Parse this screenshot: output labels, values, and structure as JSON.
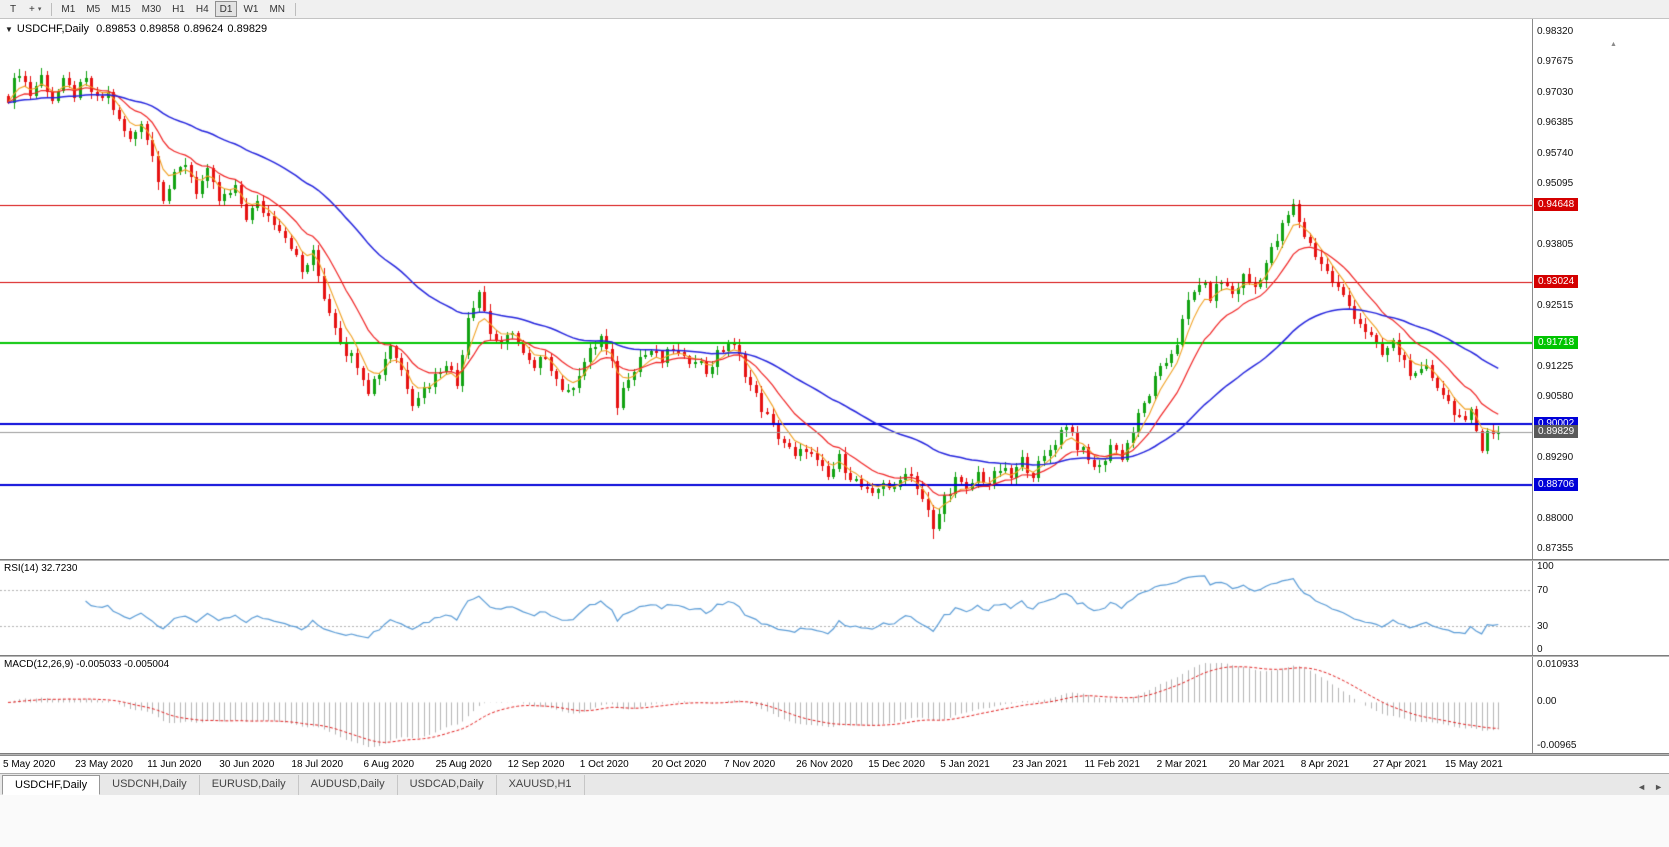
{
  "colors": {
    "bull": "#12a312",
    "bear": "#e61212",
    "ma_fast": "#f0a020",
    "ma_mid": "#f02424",
    "ma_slow": "#2424dd",
    "rsi_line": "#5b9cd6",
    "macd_hist": "#b4b4b4",
    "macd_signal": "#e02020",
    "level_dotted": "#b0b0b0",
    "current_line": "#9a9a9a"
  },
  "toolbar": {
    "icons": [
      {
        "name": "templates-icon",
        "glyph": "T"
      },
      {
        "name": "crosshair-icon",
        "glyph": "+"
      },
      {
        "name": "dropdown-caret-icon",
        "glyph": "▾"
      }
    ],
    "timeframes": [
      "M1",
      "M5",
      "M15",
      "M30",
      "H1",
      "H4",
      "D1",
      "W1",
      "MN"
    ],
    "active_timeframe": "D1"
  },
  "chart": {
    "collapse_glyph": "▼",
    "scroll_up_glyph": "▲",
    "symbol_label": "USDCHF,Daily",
    "ohlc": {
      "open": "0.89853",
      "high": "0.89858",
      "low": "0.89624",
      "close": "0.89829"
    },
    "price_axis": [
      "0.98320",
      "0.97675",
      "0.97030",
      "0.96385",
      "0.95740",
      "0.95095",
      "0.94450",
      "0.93805",
      "0.93160",
      "0.92515",
      "0.91870",
      "0.91225",
      "0.90580",
      "0.89935",
      "0.89290",
      "0.88645",
      "0.88000",
      "0.87355"
    ],
    "hlines": [
      {
        "label": "0.94648",
        "value": 0.94648,
        "color": "#d40000",
        "width": 1
      },
      {
        "label": "0.93024",
        "value": 0.93024,
        "color": "#d40000",
        "width": 1
      },
      {
        "label": "0.91718",
        "value": 0.91718,
        "color": "#00c400",
        "width": 2
      },
      {
        "label": "0.90002",
        "value": 0.90002,
        "color": "#0000d8",
        "width": 2
      },
      {
        "label": "0.88706",
        "value": 0.88706,
        "color": "#0000d8",
        "width": 2
      }
    ],
    "current_price": {
      "label": "0.89829",
      "value": 0.89829,
      "color": "#5a5a5a"
    }
  },
  "rsi": {
    "label": "RSI(14) 32.7230",
    "period": 14,
    "current": 32.723,
    "axis": [
      {
        "label": "100",
        "value": 100
      },
      {
        "label": "70",
        "value": 70
      },
      {
        "label": "30",
        "value": 30
      },
      {
        "label": "0",
        "value": 0
      }
    ],
    "upper_level": 70,
    "lower_level": 30
  },
  "macd": {
    "label": "MACD(12,26,9) -0.005033 -0.005004",
    "fast": 12,
    "slow": 26,
    "signal": 9,
    "current_macd": -0.005033,
    "current_signal": -0.005004,
    "axis_max": "0.010933",
    "axis_zero": "0.00",
    "axis_min": "-0.00965"
  },
  "tabs": {
    "items": [
      {
        "label": "USDCHF,Daily",
        "active": true
      },
      {
        "label": "USDCNH,Daily",
        "active": false
      },
      {
        "label": "EURUSD,Daily",
        "active": false
      },
      {
        "label": "AUDUSD,Daily",
        "active": false
      },
      {
        "label": "USDCAD,Daily",
        "active": false
      },
      {
        "label": "XAUUSD,H1",
        "active": false
      }
    ],
    "scroll_left_glyph": "◄",
    "scroll_right_glyph": "►"
  },
  "chart_data": {
    "type": "candlestick",
    "symbol": "USDCHF",
    "timeframe": "Daily",
    "bars": 270,
    "price_axis_range": [
      0.87355,
      0.9832
    ],
    "x_labels": [
      "5 May 2020",
      "23 May 2020",
      "11 Jun 2020",
      "30 Jun 2020",
      "18 Jul 2020",
      "6 Aug 2020",
      "25 Aug 2020",
      "12 Sep 2020",
      "1 Oct 2020",
      "20 Oct 2020",
      "7 Nov 2020",
      "26 Nov 2020",
      "15 Dec 2020",
      "5 Jan 2021",
      "23 Jan 2021",
      "11 Feb 2021",
      "2 Mar 2021",
      "20 Mar 2021",
      "8 Apr 2021",
      "27 Apr 2021",
      "15 May 2021"
    ],
    "close_anchors": [
      [
        0,
        0.9695
      ],
      [
        2,
        0.975
      ],
      [
        4,
        0.97
      ],
      [
        6,
        0.9737
      ],
      [
        8,
        0.969
      ],
      [
        10,
        0.9722
      ],
      [
        12,
        0.97
      ],
      [
        14,
        0.9726
      ],
      [
        16,
        0.9685
      ],
      [
        18,
        0.9702
      ],
      [
        20,
        0.964
      ],
      [
        22,
        0.96
      ],
      [
        24,
        0.9646
      ],
      [
        26,
        0.957
      ],
      [
        28,
        0.9482
      ],
      [
        30,
        0.9522
      ],
      [
        32,
        0.9556
      ],
      [
        34,
        0.9496
      ],
      [
        36,
        0.9532
      ],
      [
        38,
        0.9474
      ],
      [
        41,
        0.9496
      ],
      [
        43,
        0.944
      ],
      [
        45,
        0.9466
      ],
      [
        47,
        0.9442
      ],
      [
        49,
        0.942
      ],
      [
        51,
        0.9382
      ],
      [
        53,
        0.9322
      ],
      [
        55,
        0.936
      ],
      [
        57,
        0.9272
      ],
      [
        59,
        0.9212
      ],
      [
        61,
        0.9156
      ],
      [
        63,
        0.9132
      ],
      [
        65,
        0.9076
      ],
      [
        67,
        0.9112
      ],
      [
        69,
        0.917
      ],
      [
        71,
        0.9116
      ],
      [
        73,
        0.9052
      ],
      [
        75,
        0.9076
      ],
      [
        77,
        0.9102
      ],
      [
        79,
        0.9136
      ],
      [
        81,
        0.9082
      ],
      [
        83,
        0.9232
      ],
      [
        85,
        0.9284
      ],
      [
        87,
        0.9196
      ],
      [
        89,
        0.9162
      ],
      [
        91,
        0.9202
      ],
      [
        93,
        0.9146
      ],
      [
        95,
        0.9112
      ],
      [
        97,
        0.9152
      ],
      [
        99,
        0.9096
      ],
      [
        101,
        0.9062
      ],
      [
        103,
        0.9112
      ],
      [
        105,
        0.9152
      ],
      [
        107,
        0.9186
      ],
      [
        109,
        0.9122
      ],
      [
        110,
        0.9042
      ],
      [
        112,
        0.9106
      ],
      [
        114,
        0.9142
      ],
      [
        116,
        0.9156
      ],
      [
        118,
        0.9132
      ],
      [
        120,
        0.9162
      ],
      [
        122,
        0.9132
      ],
      [
        124,
        0.9146
      ],
      [
        126,
        0.9112
      ],
      [
        128,
        0.9146
      ],
      [
        130,
        0.9176
      ],
      [
        132,
        0.9142
      ],
      [
        134,
        0.9082
      ],
      [
        136,
        0.9036
      ],
      [
        138,
        0.8992
      ],
      [
        140,
        0.8962
      ],
      [
        142,
        0.8926
      ],
      [
        144,
        0.8952
      ],
      [
        146,
        0.8916
      ],
      [
        148,
        0.8886
      ],
      [
        150,
        0.8926
      ],
      [
        152,
        0.8892
      ],
      [
        154,
        0.8866
      ],
      [
        156,
        0.8842
      ],
      [
        158,
        0.8882
      ],
      [
        160,
        0.8856
      ],
      [
        162,
        0.8906
      ],
      [
        164,
        0.8872
      ],
      [
        166,
        0.8812
      ],
      [
        167,
        0.8772
      ],
      [
        169,
        0.8846
      ],
      [
        171,
        0.8882
      ],
      [
        173,
        0.8856
      ],
      [
        175,
        0.8896
      ],
      [
        177,
        0.8872
      ],
      [
        179,
        0.8906
      ],
      [
        181,
        0.8886
      ],
      [
        183,
        0.8922
      ],
      [
        185,
        0.8896
      ],
      [
        187,
        0.8926
      ],
      [
        189,
        0.8966
      ],
      [
        191,
        0.9002
      ],
      [
        193,
        0.8956
      ],
      [
        195,
        0.8922
      ],
      [
        197,
        0.8906
      ],
      [
        199,
        0.8956
      ],
      [
        201,
        0.8932
      ],
      [
        203,
        0.8986
      ],
      [
        205,
        0.9042
      ],
      [
        207,
        0.9092
      ],
      [
        209,
        0.9132
      ],
      [
        211,
        0.9176
      ],
      [
        213,
        0.9256
      ],
      [
        215,
        0.9302
      ],
      [
        217,
        0.9272
      ],
      [
        219,
        0.9306
      ],
      [
        221,
        0.9276
      ],
      [
        223,
        0.9312
      ],
      [
        225,
        0.9292
      ],
      [
        227,
        0.9342
      ],
      [
        229,
        0.9392
      ],
      [
        231,
        0.9442
      ],
      [
        232,
        0.9462
      ],
      [
        234,
        0.9402
      ],
      [
        236,
        0.9362
      ],
      [
        238,
        0.9322
      ],
      [
        240,
        0.9286
      ],
      [
        242,
        0.9252
      ],
      [
        244,
        0.9216
      ],
      [
        246,
        0.9182
      ],
      [
        248,
        0.9146
      ],
      [
        250,
        0.9172
      ],
      [
        252,
        0.9132
      ],
      [
        254,
        0.9096
      ],
      [
        256,
        0.9116
      ],
      [
        258,
        0.9086
      ],
      [
        260,
        0.9046
      ],
      [
        262,
        0.9016
      ],
      [
        263,
        0.8996
      ],
      [
        264,
        0.9022
      ],
      [
        265,
        0.8986
      ],
      [
        266,
        0.8956
      ],
      [
        267,
        0.8992
      ],
      [
        268,
        0.8976
      ],
      [
        269,
        0.89829
      ]
    ],
    "lowest_low": 0.8757,
    "overlays": [
      {
        "name": "EMA fast",
        "period": 5,
        "color_key": "ma_fast"
      },
      {
        "name": "EMA mid",
        "period": 13,
        "color_key": "ma_mid"
      },
      {
        "name": "EMA slow",
        "period": 45,
        "color_key": "ma_slow"
      }
    ],
    "horizontal_levels": [
      0.94648,
      0.93024,
      0.91718,
      0.90002,
      0.88706
    ],
    "indicators": [
      {
        "type": "RSI",
        "period": 14,
        "current": 32.723,
        "levels": [
          30,
          70
        ]
      },
      {
        "type": "MACD",
        "fast": 12,
        "slow": 26,
        "signal": 9,
        "current": [
          -0.005033,
          -0.005004
        ]
      }
    ]
  }
}
